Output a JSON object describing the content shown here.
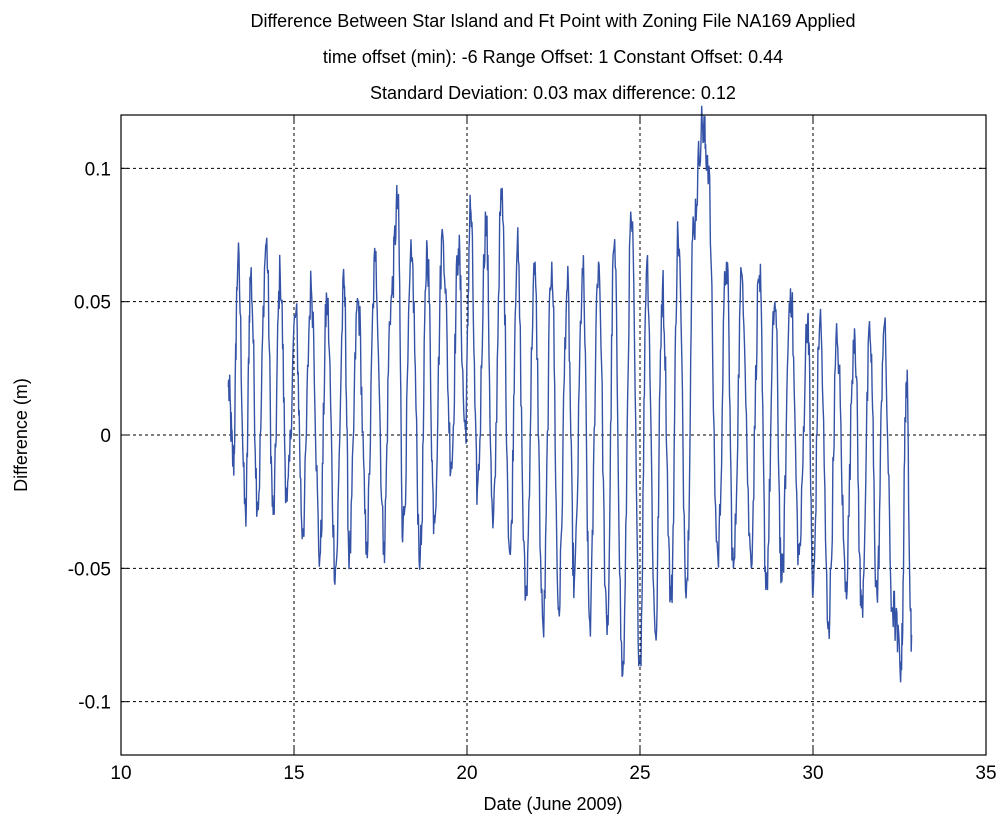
{
  "chart_data": {
    "type": "line",
    "title": [
      "Difference Between Star Island and Ft Point with Zoning File NA169 Applied",
      "time offset (min): -6  Range Offset: 1 Constant Offset: 0.44",
      "Standard Deviation: 0.03 max difference: 0.12"
    ],
    "xlabel": "Date (June 2009)",
    "ylabel": "Difference (m)",
    "xlim": [
      10,
      35
    ],
    "ylim": [
      -0.12,
      0.12
    ],
    "xticks": [
      10,
      15,
      20,
      25,
      30,
      35
    ],
    "xtick_labels": [
      "10",
      "15",
      "20",
      "25",
      "30",
      "35"
    ],
    "yticks": [
      -0.1,
      -0.05,
      0,
      0.05,
      0.1
    ],
    "ytick_labels": [
      "-0.1",
      "-0.05",
      "0",
      "0.05",
      "0.1"
    ],
    "grid": true,
    "grid_style": "dashed",
    "line_color": "#3553a6",
    "series": [
      {
        "x_start": 13.1,
        "x_end": 32.85,
        "approximate": true,
        "sampling": "semi-diurnal peaks and troughs, approximately every 0.26 day",
        "x": [
          13.1,
          13.25,
          13.38,
          13.6,
          13.75,
          13.95,
          14.2,
          14.4,
          14.6,
          14.8,
          15.05,
          15.25,
          15.5,
          15.75,
          15.95,
          16.2,
          16.45,
          16.6,
          16.85,
          17.1,
          17.35,
          17.6,
          17.8,
          18.0,
          18.15,
          18.4,
          18.65,
          18.85,
          19.05,
          19.3,
          19.55,
          19.75,
          19.95,
          20.1,
          20.3,
          20.55,
          20.75,
          21.0,
          21.25,
          21.45,
          21.7,
          21.95,
          22.2,
          22.45,
          22.65,
          22.9,
          23.1,
          23.35,
          23.55,
          23.8,
          24.05,
          24.25,
          24.5,
          24.75,
          25.0,
          25.2,
          25.45,
          25.65,
          25.9,
          26.1,
          26.35,
          26.55,
          26.8,
          26.95,
          27.25,
          27.5,
          27.7,
          27.95,
          28.2,
          28.45,
          28.65,
          28.9,
          29.1,
          29.35,
          29.6,
          29.85,
          30.0,
          30.2,
          30.45,
          30.7,
          30.95,
          31.2,
          31.4,
          31.65,
          31.85,
          32.05,
          32.3,
          32.55,
          32.7,
          32.85
        ],
        "y": [
          0.018,
          -0.01,
          0.065,
          -0.03,
          0.06,
          -0.025,
          0.072,
          -0.03,
          0.06,
          -0.025,
          0.045,
          -0.035,
          0.055,
          -0.045,
          0.05,
          -0.05,
          0.055,
          -0.045,
          0.05,
          -0.04,
          0.065,
          -0.04,
          0.05,
          0.087,
          -0.035,
          0.065,
          -0.045,
          0.07,
          -0.03,
          0.075,
          -0.01,
          0.07,
          0.002,
          0.085,
          -0.02,
          0.08,
          -0.035,
          0.088,
          -0.045,
          0.07,
          -0.06,
          0.06,
          -0.072,
          0.065,
          -0.065,
          0.055,
          -0.055,
          0.06,
          -0.07,
          0.065,
          -0.075,
          0.07,
          -0.09,
          0.08,
          -0.085,
          0.065,
          -0.075,
          0.055,
          -0.062,
          0.075,
          -0.055,
          0.08,
          0.116,
          0.105,
          -0.045,
          0.065,
          -0.05,
          0.06,
          -0.045,
          0.06,
          -0.055,
          0.05,
          -0.055,
          0.055,
          -0.045,
          0.045,
          -0.06,
          0.043,
          -0.07,
          0.035,
          -0.055,
          0.04,
          -0.065,
          0.036,
          -0.06,
          0.04,
          -0.065,
          -0.085,
          0.02,
          -0.075
        ]
      }
    ]
  }
}
